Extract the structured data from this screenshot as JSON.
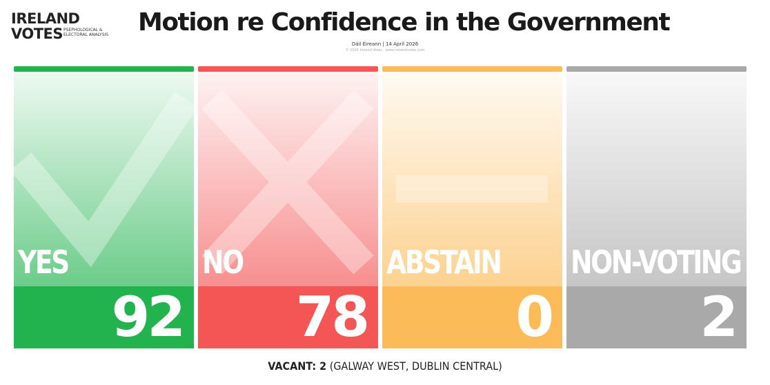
{
  "logo": {
    "line1": "IRELAND",
    "line2": "VOTES",
    "tagline": "PSEPHOLOGICAL & ELECTORAL ANALYSIS"
  },
  "header": {
    "title": "Motion re Confidence in the Government",
    "subtitle": "Dáil Éireann | 14 April 2026",
    "credit": "© 2026 Ireland Votes · www.irelandvotes.com"
  },
  "cards": [
    {
      "label": "YES",
      "value": "92",
      "color": "#22b34f"
    },
    {
      "label": "NO",
      "value": "78",
      "color": "#f45656"
    },
    {
      "label": "ABSTAIN",
      "value": "0",
      "color": "#fbbb58"
    },
    {
      "label": "NON-VOTING",
      "value": "2",
      "color": "#a9a9a9"
    }
  ],
  "footer": {
    "key": "VACANT: 2",
    "detail": "(GALWAY WEST, DUBLIN CENTRAL)"
  }
}
